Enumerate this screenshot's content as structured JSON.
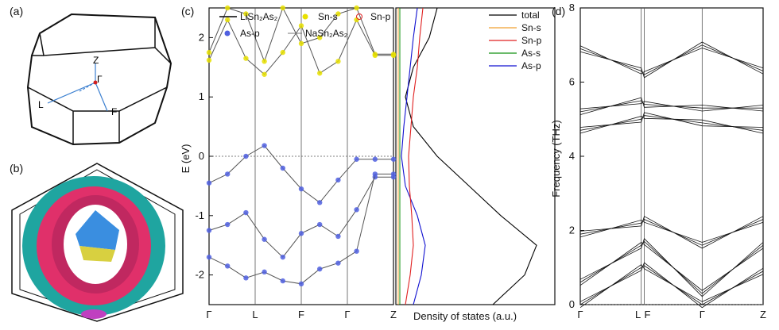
{
  "panels": {
    "a": {
      "label": "(a)",
      "bz_points": [
        "Z",
        "Γ",
        "L",
        "F"
      ]
    },
    "b": {
      "label": "(b)"
    },
    "c": {
      "label": "(c)",
      "legend": [
        "LiSn₂As₂",
        "Sn-s",
        "Sn-p",
        "As-p",
        "NaSn₂As₂"
      ],
      "dos_xlabel": "Density of states (a.u.)",
      "dos_legend": [
        "total",
        "Sn-s",
        "Sn-p",
        "As-s",
        "As-p"
      ]
    },
    "d": {
      "label": "(d)"
    }
  },
  "colors": {
    "total": "#000000",
    "sn_s": "#f0a030",
    "sn_p": "#e02020",
    "as_s": "#109010",
    "as_p": "#1010d0",
    "marker_sn_s": "#e8e000",
    "marker_as_p": "#5060e0",
    "bz_teal": "#1fa5a0",
    "bz_pink": "#e0306a",
    "bz_blue": "#3a8ee0",
    "bz_yellow": "#d8d040",
    "bz_magenta": "#c040c0"
  },
  "chart_data": [
    {
      "type": "line",
      "title": "",
      "ylabel": "E (eV)",
      "xticks": [
        "Γ",
        "L",
        "F",
        "Γ",
        "Z"
      ],
      "yticks": [
        "2",
        "1",
        "0",
        "-1",
        "-2"
      ],
      "ylim": [
        -2.5,
        2.5
      ],
      "series": [
        {
          "name": "LiSn₂As₂",
          "x": [
            0,
            0.4,
            0.8,
            1.2,
            1.6,
            2.0,
            2.4,
            2.8,
            3.2,
            3.6,
            4.0
          ],
          "values": [
            -0.45,
            -0.3,
            0.0,
            0.18,
            -0.2,
            -0.55,
            -0.78,
            -0.4,
            -0.05,
            -0.05,
            -0.05
          ]
        },
        {
          "name": "LiSn₂As₂",
          "x": [
            0,
            0.4,
            0.8,
            1.2,
            1.6,
            2.0,
            2.4,
            2.8,
            3.2,
            3.6,
            4.0
          ],
          "values": [
            -1.25,
            -1.15,
            -0.95,
            -1.4,
            -1.7,
            -1.3,
            -1.15,
            -1.35,
            -0.9,
            -0.35,
            -0.35
          ]
        },
        {
          "name": "LiSn₂As₂",
          "x": [
            0,
            0.4,
            0.8,
            1.2,
            1.6,
            2.0,
            2.4,
            2.8,
            3.2,
            3.6,
            4.0
          ],
          "values": [
            -1.7,
            -1.85,
            -2.05,
            -1.95,
            -2.1,
            -2.15,
            -1.9,
            -1.8,
            -1.6,
            -0.3,
            -0.3
          ]
        },
        {
          "name": "LiSn₂As₂",
          "x": [
            0,
            0.4,
            0.8,
            1.2,
            1.6,
            2.0,
            2.4,
            2.8,
            3.2,
            3.6,
            4.0
          ],
          "values": [
            1.62,
            2.3,
            1.65,
            1.38,
            1.75,
            2.2,
            1.4,
            1.6,
            2.3,
            1.7,
            1.7
          ]
        },
        {
          "name": "LiSn₂As₂",
          "x": [
            0,
            0.4,
            0.8,
            1.2,
            1.6,
            2.0,
            2.4,
            2.8,
            3.2,
            3.6,
            4.0
          ],
          "values": [
            1.75,
            2.5,
            2.4,
            1.6,
            2.5,
            1.9,
            2.0,
            2.4,
            2.5,
            1.72,
            1.72
          ]
        }
      ]
    },
    {
      "type": "line",
      "title": "",
      "ylabel": "Frequency (THz)",
      "xticks": [
        "Γ",
        "L",
        "F",
        "Γ",
        "Z"
      ],
      "yticks": [
        "0",
        "2",
        "4",
        "6",
        "8"
      ],
      "ylim": [
        0,
        8
      ],
      "series": [
        {
          "x": [
            0,
            1,
            1.05,
            2,
            3
          ],
          "values": [
            0,
            1.0,
            1.05,
            0,
            0.9
          ]
        },
        {
          "x": [
            0,
            1,
            1.05,
            2,
            3
          ],
          "values": [
            0.6,
            1.6,
            1.7,
            0.3,
            1.6
          ]
        },
        {
          "x": [
            0,
            1,
            1.05,
            2,
            3
          ],
          "values": [
            1.9,
            2.2,
            2.3,
            1.6,
            2.3
          ]
        },
        {
          "x": [
            0,
            1,
            1.05,
            2,
            3
          ],
          "values": [
            4.7,
            5.0,
            5.1,
            4.9,
            4.7
          ]
        },
        {
          "x": [
            0,
            1,
            1.05,
            2,
            3
          ],
          "values": [
            5.2,
            5.5,
            5.4,
            5.3,
            5.3
          ]
        },
        {
          "x": [
            0,
            1,
            1.05,
            2,
            3
          ],
          "values": [
            6.9,
            6.3,
            6.2,
            7.0,
            6.3
          ]
        }
      ]
    }
  ]
}
